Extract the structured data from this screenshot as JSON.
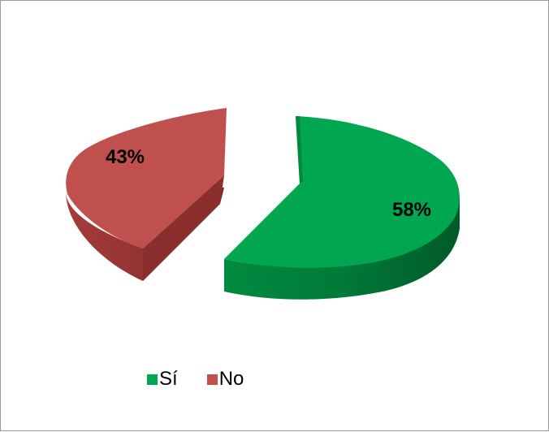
{
  "chart_data": {
    "type": "pie",
    "title": "",
    "categories": [
      "Sí",
      "No"
    ],
    "values": [
      58,
      43
    ],
    "labels": [
      "58%",
      "43%"
    ],
    "colors": [
      "#00a650",
      "#c0504d"
    ],
    "style": "3d-exploded",
    "legend": "bottom"
  }
}
